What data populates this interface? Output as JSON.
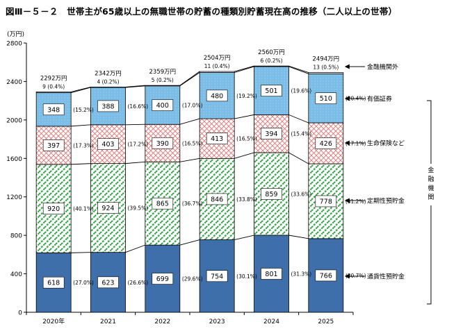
{
  "title": "図Ⅲ－５－２　世帯主が65歳以上の無職世帯の貯蓄の種類別貯蓄現在高の推移（二人以上の世帯）",
  "chart_data": {
    "type": "bar",
    "stacked": true,
    "unit_label": "(万円)",
    "categories": [
      "2020年",
      "2021",
      "2022",
      "2023",
      "2024",
      "2025"
    ],
    "ylim": [
      0,
      2800
    ],
    "yticks": [
      0,
      400,
      800,
      1200,
      1600,
      2000,
      2400,
      2800
    ],
    "grid": false,
    "totals": [
      "2292万円",
      "2342万円",
      "2359万円",
      "2504万円",
      "2560万円",
      "2494万円"
    ],
    "series": [
      {
        "name": "通貨性預貯金",
        "color": "#3f6fab",
        "pattern": "solid",
        "values": [
          618,
          623,
          699,
          754,
          801,
          766
        ],
        "shares": [
          "(27.0%)",
          "(26.6%)",
          "(29.6%)",
          "(30.1%)",
          "(31.3%)",
          "(30.7%)"
        ]
      },
      {
        "name": "定期性預貯金",
        "color": "#3ea64e",
        "pattern": "diagonal-dash",
        "values": [
          920,
          924,
          865,
          846,
          859,
          778
        ],
        "shares": [
          "(40.1%)",
          "(39.5%)",
          "(36.7%)",
          "(33.8%)",
          "(33.6%)",
          "(31.2%)"
        ]
      },
      {
        "name": "生命保険など",
        "color": "#e36b6b",
        "pattern": "crosshatch",
        "values": [
          397,
          403,
          390,
          413,
          394,
          426
        ],
        "shares": [
          "(17.3%)",
          "(17.2%)",
          "(16.5%)",
          "(16.5%)",
          "(15.4%)",
          "(17.1%)"
        ]
      },
      {
        "name": "有価証券",
        "color": "#7bbde6",
        "pattern": "dots",
        "values": [
          348,
          388,
          400,
          480,
          501,
          510
        ],
        "shares": [
          "(15.2%)",
          "(16.6%)",
          "(17.0%)",
          "(19.2%)",
          "(19.6%)",
          "(20.4%)"
        ]
      },
      {
        "name": "金融機関外",
        "color": "#ffffff",
        "pattern": "none",
        "values": [
          9,
          4,
          5,
          11,
          6,
          13
        ],
        "shares": [
          "(0.4%)",
          "(0.2%)",
          "(0.2%)",
          "(0.4%)",
          "(0.2%)",
          "(0.5%)"
        ]
      }
    ],
    "bracket_label": "金融機関"
  }
}
